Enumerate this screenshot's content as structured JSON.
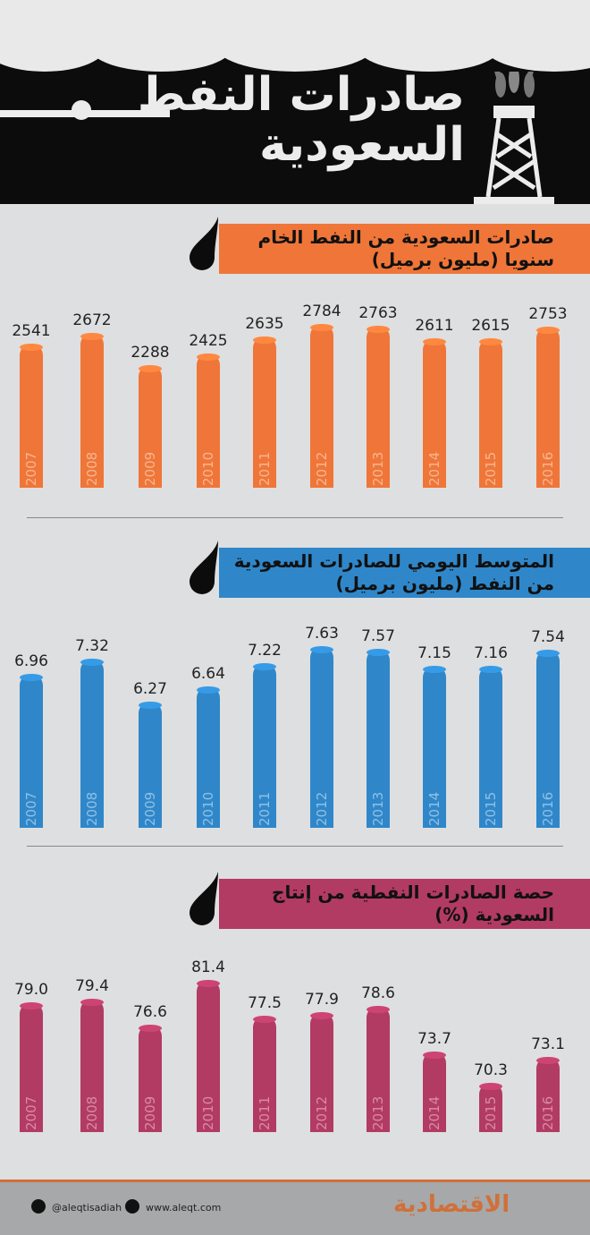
{
  "title": {
    "line1": "صادرات النفط",
    "line2": "السعودية"
  },
  "colors": {
    "orange": "#ef7638",
    "blue": "#2f87c9",
    "magenta": "#b23b63"
  },
  "chart_data": [
    {
      "type": "bar",
      "title": "صادرات السعودية من النفط الخام سنويا (مليون برميل)",
      "categories": [
        "2007",
        "2008",
        "2009",
        "2010",
        "2011",
        "2012",
        "2013",
        "2014",
        "2015",
        "2016"
      ],
      "values": [
        2541,
        2672,
        2288,
        2425,
        2635,
        2784,
        2763,
        2611,
        2615,
        2753
      ],
      "labels": [
        "2541",
        "2672",
        "2288",
        "2425",
        "2635",
        "2784",
        "2763",
        "2611",
        "2615",
        "2753"
      ],
      "color": "#ef7638"
    },
    {
      "type": "bar",
      "title": "المتوسط اليومي للصادرات السعودية من النفط (مليون برميل)",
      "categories": [
        "2007",
        "2008",
        "2009",
        "2010",
        "2011",
        "2012",
        "2013",
        "2014",
        "2015",
        "2016"
      ],
      "values": [
        6.96,
        7.32,
        6.27,
        6.64,
        7.22,
        7.63,
        7.57,
        7.15,
        7.16,
        7.54
      ],
      "labels": [
        "6.96",
        "7.32",
        "6.27",
        "6.64",
        "7.22",
        "7.63",
        "7.57",
        "7.15",
        "7.16",
        "7.54"
      ],
      "color": "#2f87c9"
    },
    {
      "type": "bar",
      "title": "حصة الصادرات النفطية من إنتاج السعودية (%)",
      "categories": [
        "2007",
        "2008",
        "2009",
        "2010",
        "2011",
        "2012",
        "2013",
        "2014",
        "2015",
        "2016"
      ],
      "values": [
        79.0,
        79.4,
        76.6,
        81.4,
        77.5,
        77.9,
        78.6,
        73.7,
        70.3,
        73.1
      ],
      "labels": [
        "79.0",
        "79.4",
        "76.6",
        "81.4",
        "77.5",
        "77.9",
        "78.6",
        "73.7",
        "70.3",
        "73.1"
      ],
      "color": "#b23b63"
    }
  ],
  "footer": {
    "twitter": "@aleqtisadiah",
    "website": "www.aleqt.com",
    "logo": "الاقتصادية"
  }
}
